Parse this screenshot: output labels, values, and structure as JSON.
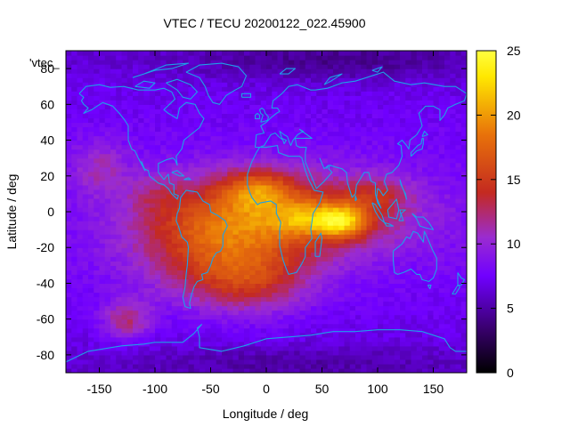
{
  "chart_data": {
    "type": "heatmap",
    "title": "VTEC / TECU 20200122_022.45900",
    "xlabel": "Longitude / deg",
    "ylabel": "Latitude / deg",
    "xlim": [
      -180,
      180
    ],
    "ylim": [
      -90,
      90
    ],
    "x_ticks": [
      -150,
      -100,
      -50,
      0,
      50,
      100,
      150
    ],
    "y_ticks": [
      -80,
      -60,
      -40,
      -20,
      0,
      20,
      40,
      60,
      80
    ],
    "colorbar": {
      "range": [
        0,
        25
      ],
      "ticks": [
        0,
        5,
        10,
        15,
        20,
        25
      ],
      "stops": [
        "#000000",
        "#3a0070",
        "#7000ff",
        "#9a2cd0",
        "#c42a20",
        "#e8720a",
        "#ffe800",
        "#ffff40"
      ]
    },
    "legend_label": "'vtec_",
    "overlay": "coastlines",
    "overlay_color": "#1ea0e8",
    "grid_resolution_deg": [
      5,
      2.5
    ],
    "features": [
      {
        "name": "equatorial-anomaly-americas-atlantic",
        "lon": -10,
        "lat": 13,
        "vtec": 22
      },
      {
        "name": "equatorial-anomaly-indian-ocean",
        "lon": 70,
        "lat": -5,
        "vtec": 24
      },
      {
        "name": "africa-maximum",
        "lon": 25,
        "lat": -3,
        "vtec": 21
      },
      {
        "name": "southern-hemisphere-plume",
        "lon": -20,
        "lat": -30,
        "vtec": 16
      },
      {
        "name": "south-pacific-patch",
        "lon": -125,
        "lat": -60,
        "vtec": 13
      },
      {
        "name": "polar-minimum-north",
        "lon": 60,
        "lat": 78,
        "vtec": 4
      },
      {
        "name": "polar-minimum-south",
        "lon": 20,
        "lat": -78,
        "vtec": 5
      },
      {
        "name": "background-mid-latitude",
        "lon": 0,
        "lat": 45,
        "vtec": 7
      }
    ]
  }
}
